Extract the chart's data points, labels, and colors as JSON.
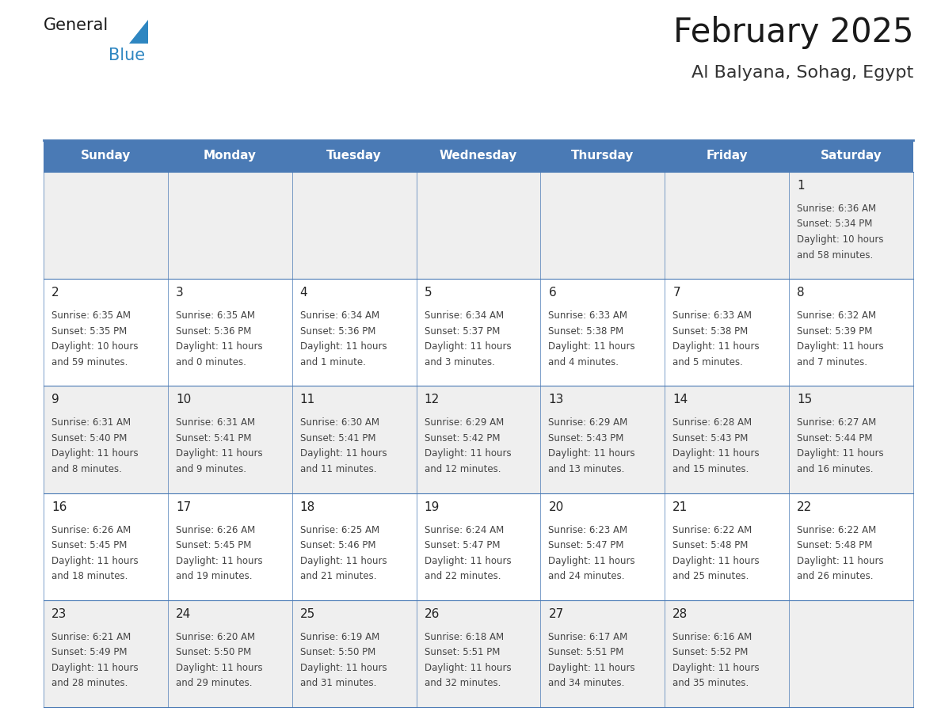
{
  "title": "February 2025",
  "subtitle": "Al Balyana, Sohag, Egypt",
  "days_of_week": [
    "Sunday",
    "Monday",
    "Tuesday",
    "Wednesday",
    "Thursday",
    "Friday",
    "Saturday"
  ],
  "header_bg": "#4a7ab5",
  "header_text_color": "#FFFFFF",
  "cell_bg_odd": "#EFEFEF",
  "cell_bg_even": "#FFFFFF",
  "cell_border_color": "#4a7ab5",
  "title_color": "#1a1a1a",
  "subtitle_color": "#333333",
  "text_color": "#444444",
  "day_num_color": "#222222",
  "logo_general_color": "#1a1a1a",
  "logo_blue_color": "#2E86C1",
  "calendar": [
    [
      null,
      null,
      null,
      null,
      null,
      null,
      {
        "day": 1,
        "sunrise": "6:36 AM",
        "sunset": "5:34 PM",
        "daylight_h": "10 hours",
        "daylight_m": "and 58 minutes."
      }
    ],
    [
      {
        "day": 2,
        "sunrise": "6:35 AM",
        "sunset": "5:35 PM",
        "daylight_h": "10 hours",
        "daylight_m": "and 59 minutes."
      },
      {
        "day": 3,
        "sunrise": "6:35 AM",
        "sunset": "5:36 PM",
        "daylight_h": "11 hours",
        "daylight_m": "and 0 minutes."
      },
      {
        "day": 4,
        "sunrise": "6:34 AM",
        "sunset": "5:36 PM",
        "daylight_h": "11 hours",
        "daylight_m": "and 1 minute."
      },
      {
        "day": 5,
        "sunrise": "6:34 AM",
        "sunset": "5:37 PM",
        "daylight_h": "11 hours",
        "daylight_m": "and 3 minutes."
      },
      {
        "day": 6,
        "sunrise": "6:33 AM",
        "sunset": "5:38 PM",
        "daylight_h": "11 hours",
        "daylight_m": "and 4 minutes."
      },
      {
        "day": 7,
        "sunrise": "6:33 AM",
        "sunset": "5:38 PM",
        "daylight_h": "11 hours",
        "daylight_m": "and 5 minutes."
      },
      {
        "day": 8,
        "sunrise": "6:32 AM",
        "sunset": "5:39 PM",
        "daylight_h": "11 hours",
        "daylight_m": "and 7 minutes."
      }
    ],
    [
      {
        "day": 9,
        "sunrise": "6:31 AM",
        "sunset": "5:40 PM",
        "daylight_h": "11 hours",
        "daylight_m": "and 8 minutes."
      },
      {
        "day": 10,
        "sunrise": "6:31 AM",
        "sunset": "5:41 PM",
        "daylight_h": "11 hours",
        "daylight_m": "and 9 minutes."
      },
      {
        "day": 11,
        "sunrise": "6:30 AM",
        "sunset": "5:41 PM",
        "daylight_h": "11 hours",
        "daylight_m": "and 11 minutes."
      },
      {
        "day": 12,
        "sunrise": "6:29 AM",
        "sunset": "5:42 PM",
        "daylight_h": "11 hours",
        "daylight_m": "and 12 minutes."
      },
      {
        "day": 13,
        "sunrise": "6:29 AM",
        "sunset": "5:43 PM",
        "daylight_h": "11 hours",
        "daylight_m": "and 13 minutes."
      },
      {
        "day": 14,
        "sunrise": "6:28 AM",
        "sunset": "5:43 PM",
        "daylight_h": "11 hours",
        "daylight_m": "and 15 minutes."
      },
      {
        "day": 15,
        "sunrise": "6:27 AM",
        "sunset": "5:44 PM",
        "daylight_h": "11 hours",
        "daylight_m": "and 16 minutes."
      }
    ],
    [
      {
        "day": 16,
        "sunrise": "6:26 AM",
        "sunset": "5:45 PM",
        "daylight_h": "11 hours",
        "daylight_m": "and 18 minutes."
      },
      {
        "day": 17,
        "sunrise": "6:26 AM",
        "sunset": "5:45 PM",
        "daylight_h": "11 hours",
        "daylight_m": "and 19 minutes."
      },
      {
        "day": 18,
        "sunrise": "6:25 AM",
        "sunset": "5:46 PM",
        "daylight_h": "11 hours",
        "daylight_m": "and 21 minutes."
      },
      {
        "day": 19,
        "sunrise": "6:24 AM",
        "sunset": "5:47 PM",
        "daylight_h": "11 hours",
        "daylight_m": "and 22 minutes."
      },
      {
        "day": 20,
        "sunrise": "6:23 AM",
        "sunset": "5:47 PM",
        "daylight_h": "11 hours",
        "daylight_m": "and 24 minutes."
      },
      {
        "day": 21,
        "sunrise": "6:22 AM",
        "sunset": "5:48 PM",
        "daylight_h": "11 hours",
        "daylight_m": "and 25 minutes."
      },
      {
        "day": 22,
        "sunrise": "6:22 AM",
        "sunset": "5:48 PM",
        "daylight_h": "11 hours",
        "daylight_m": "and 26 minutes."
      }
    ],
    [
      {
        "day": 23,
        "sunrise": "6:21 AM",
        "sunset": "5:49 PM",
        "daylight_h": "11 hours",
        "daylight_m": "and 28 minutes."
      },
      {
        "day": 24,
        "sunrise": "6:20 AM",
        "sunset": "5:50 PM",
        "daylight_h": "11 hours",
        "daylight_m": "and 29 minutes."
      },
      {
        "day": 25,
        "sunrise": "6:19 AM",
        "sunset": "5:50 PM",
        "daylight_h": "11 hours",
        "daylight_m": "and 31 minutes."
      },
      {
        "day": 26,
        "sunrise": "6:18 AM",
        "sunset": "5:51 PM",
        "daylight_h": "11 hours",
        "daylight_m": "and 32 minutes."
      },
      {
        "day": 27,
        "sunrise": "6:17 AM",
        "sunset": "5:51 PM",
        "daylight_h": "11 hours",
        "daylight_m": "and 34 minutes."
      },
      {
        "day": 28,
        "sunrise": "6:16 AM",
        "sunset": "5:52 PM",
        "daylight_h": "11 hours",
        "daylight_m": "and 35 minutes."
      },
      null
    ]
  ]
}
